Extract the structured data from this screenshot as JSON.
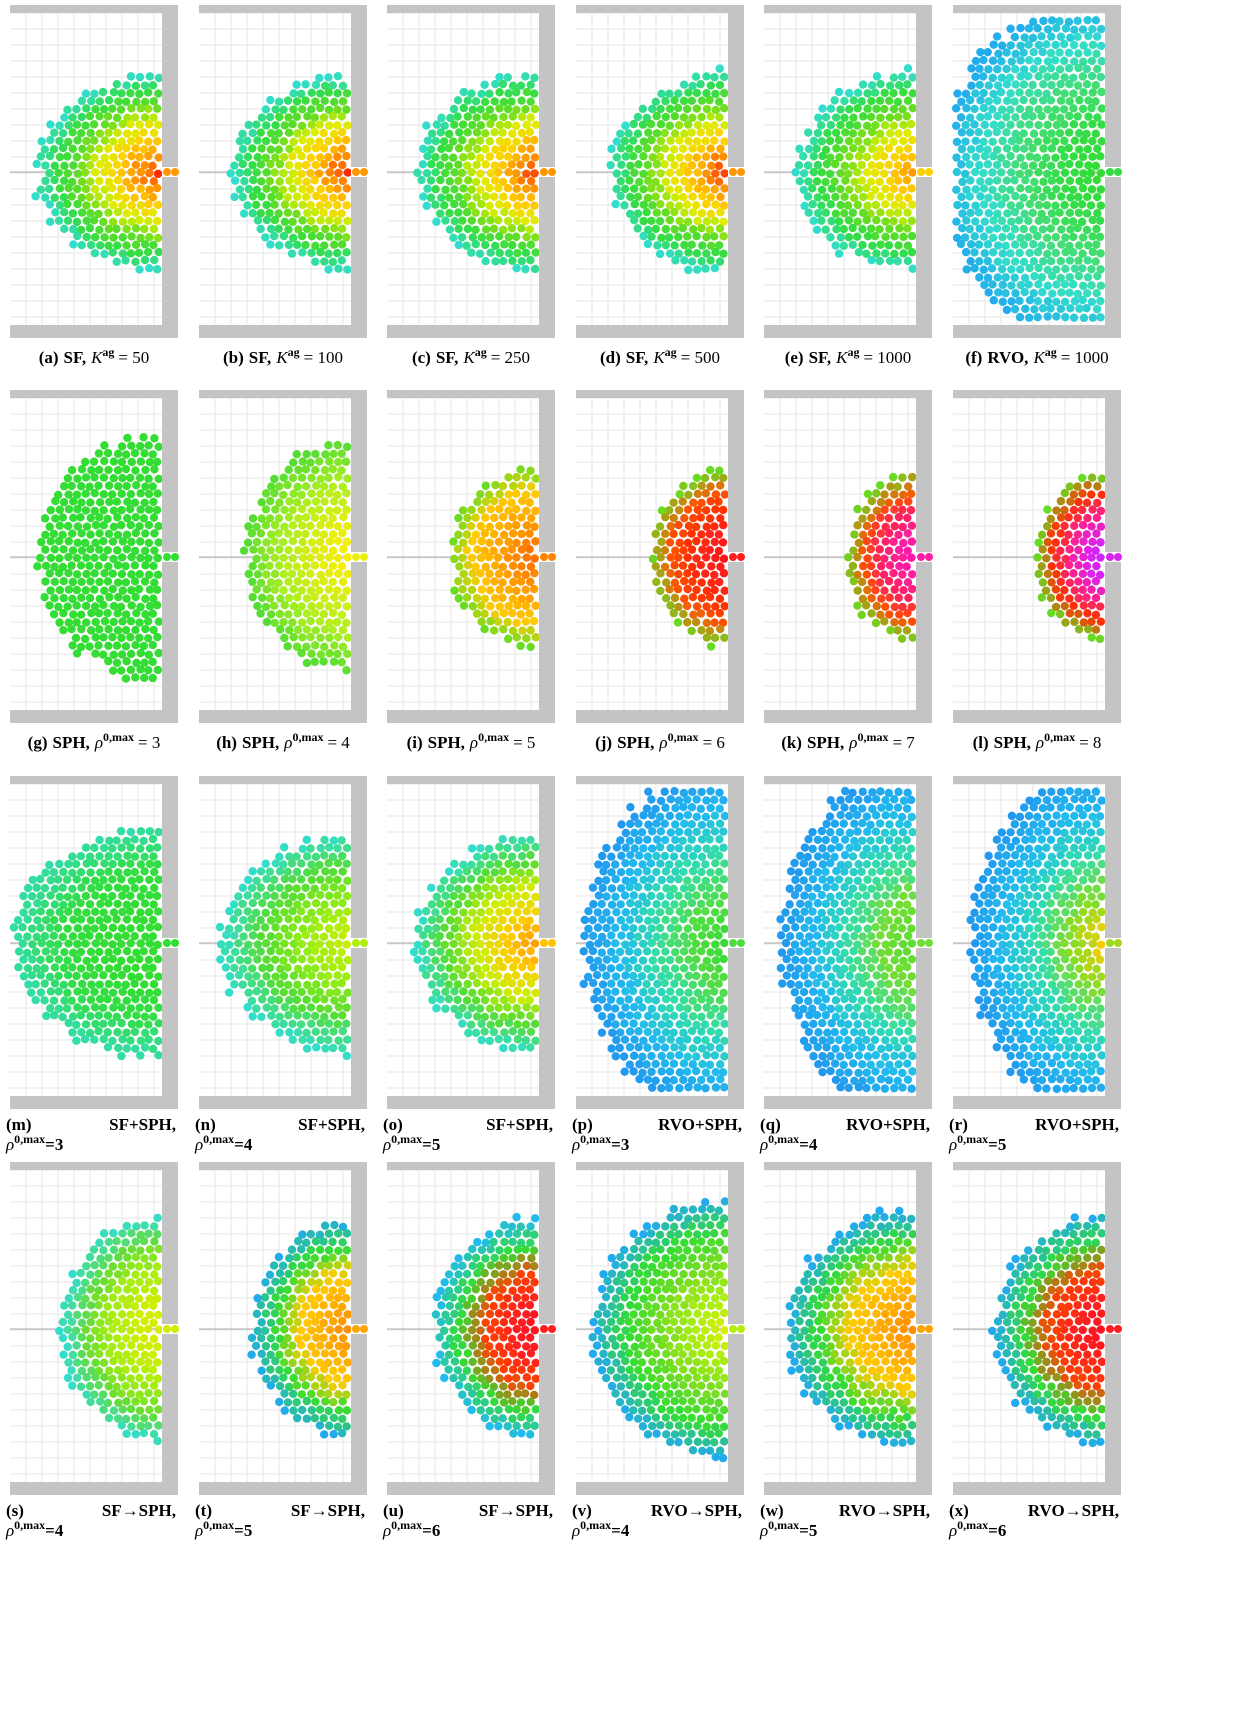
{
  "figure": {
    "captions": [
      {
        "label": "(a)",
        "method": "SF,",
        "symbol": "K",
        "sup": "ag",
        "value": "= 50"
      },
      {
        "label": "(b)",
        "method": "SF,",
        "symbol": "K",
        "sup": "ag",
        "value": "= 100"
      },
      {
        "label": "(c)",
        "method": "SF,",
        "symbol": "K",
        "sup": "ag",
        "value": "= 250"
      },
      {
        "label": "(d)",
        "method": "SF,",
        "symbol": "K",
        "sup": "ag",
        "value": "= 500"
      },
      {
        "label": "(e)",
        "method": "SF,",
        "symbol": "K",
        "sup": "ag",
        "value": "= 1000"
      },
      {
        "label": "(f)",
        "method": "RVO,",
        "symbol": "K",
        "sup": "ag",
        "value": "= 1000"
      },
      {
        "label": "(g)",
        "method": "SPH,",
        "symbol": "ρ",
        "sup": "0,max",
        "value": "= 3"
      },
      {
        "label": "(h)",
        "method": "SPH,",
        "symbol": "ρ",
        "sup": "0,max",
        "value": "= 4"
      },
      {
        "label": "(i)",
        "method": "SPH,",
        "symbol": "ρ",
        "sup": "0,max",
        "value": "= 5"
      },
      {
        "label": "(j)",
        "method": "SPH,",
        "symbol": "ρ",
        "sup": "0,max",
        "value": "= 6"
      },
      {
        "label": "(k)",
        "method": "SPH,",
        "symbol": "ρ",
        "sup": "0,max",
        "value": "= 7"
      },
      {
        "label": "(l)",
        "method": "SPH,",
        "symbol": "ρ",
        "sup": "0,max",
        "value": "= 8"
      },
      {
        "label": "(m)",
        "method": "SF+SPH,",
        "symbol": "ρ",
        "sup": "0,max",
        "value": "=3"
      },
      {
        "label": "(n)",
        "method": "SF+SPH,",
        "symbol": "ρ",
        "sup": "0,max",
        "value": "=4"
      },
      {
        "label": "(o)",
        "method": "SF+SPH,",
        "symbol": "ρ",
        "sup": "0,max",
        "value": "=5"
      },
      {
        "label": "(p)",
        "method": "RVO+SPH,",
        "symbol": "ρ",
        "sup": "0,max",
        "value": "=3"
      },
      {
        "label": "(q)",
        "method": "RVO+SPH,",
        "symbol": "ρ",
        "sup": "0,max",
        "value": "=4"
      },
      {
        "label": "(r)",
        "method": "RVO+SPH,",
        "symbol": "ρ",
        "sup": "0,max",
        "value": "=5"
      },
      {
        "label": "(s)",
        "method": "SF→SPH,",
        "symbol": "ρ",
        "sup": "0,max",
        "value": "=4"
      },
      {
        "label": "(t)",
        "method": "SF→SPH,",
        "symbol": "ρ",
        "sup": "0,max",
        "value": "=5"
      },
      {
        "label": "(u)",
        "method": "SF→SPH,",
        "symbol": "ρ",
        "sup": "0,max",
        "value": "=6"
      },
      {
        "label": "(v)",
        "method": "RVO→SPH,",
        "symbol": "ρ",
        "sup": "0,max",
        "value": "=4"
      },
      {
        "label": "(w)",
        "method": "RVO→SPH,",
        "symbol": "ρ",
        "sup": "0,max",
        "value": "=5"
      },
      {
        "label": "(x)",
        "method": "RVO→SPH,",
        "symbol": "ρ",
        "sup": "0,max",
        "value": "=6"
      }
    ]
  }
}
